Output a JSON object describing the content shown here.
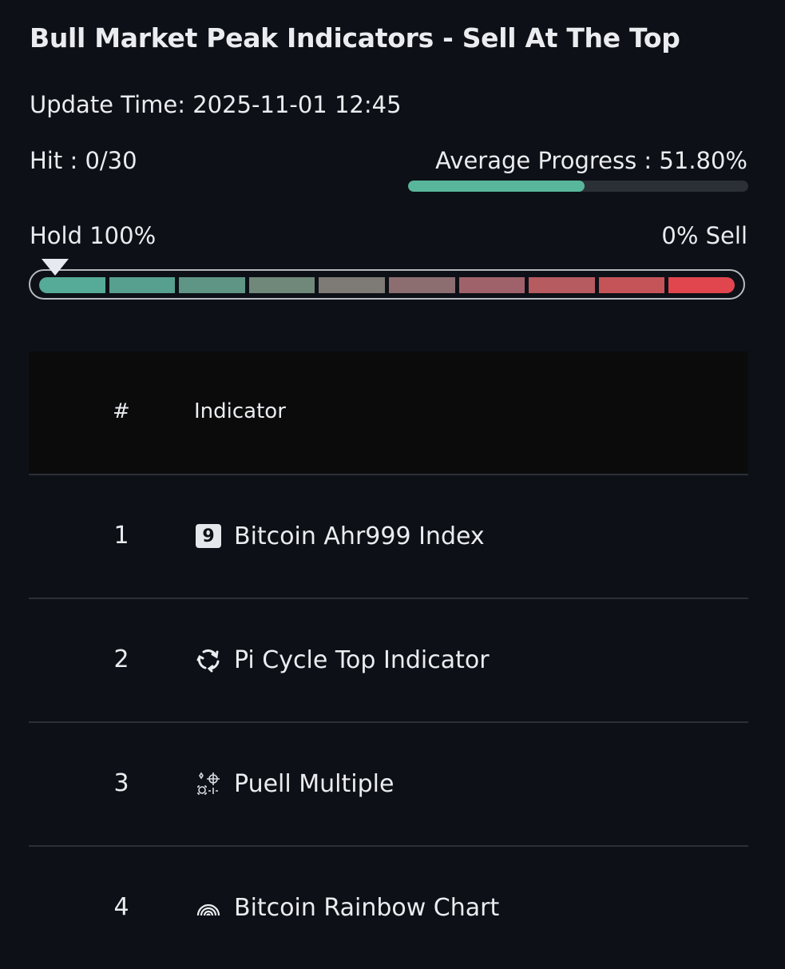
{
  "title": "Bull Market Peak Indicators - Sell At The Top",
  "update_time": "Update Time: 2025-11-01 12:45",
  "hit": "Hit : 0/30",
  "average_progress": {
    "label": "Average Progress : 51.80%",
    "value_percent": 51.8,
    "color": "#58b79a"
  },
  "scale": {
    "left_label": "Hold 100%",
    "right_label": "0% Sell",
    "marker_position_percent": 2,
    "segment_colors": [
      "#55ab97",
      "#579f8f",
      "#5f9585",
      "#6f887a",
      "#7e7b76",
      "#8c6e70",
      "#a0626a",
      "#b65b60",
      "#c55459",
      "#e1464e"
    ]
  },
  "table": {
    "headers": {
      "num": "#",
      "indicator": "Indicator"
    },
    "rows": [
      {
        "num": "1",
        "icon": "number-9-badge-icon",
        "badge": "9",
        "name": "Bitcoin Ahr999 Index"
      },
      {
        "num": "2",
        "icon": "cycle-arrows-icon",
        "name": "Pi Cycle Top Indicator"
      },
      {
        "num": "3",
        "icon": "crosshair-targets-icon",
        "name": "Puell Multiple"
      },
      {
        "num": "4",
        "icon": "rainbow-icon",
        "name": "Bitcoin Rainbow Chart"
      }
    ]
  }
}
